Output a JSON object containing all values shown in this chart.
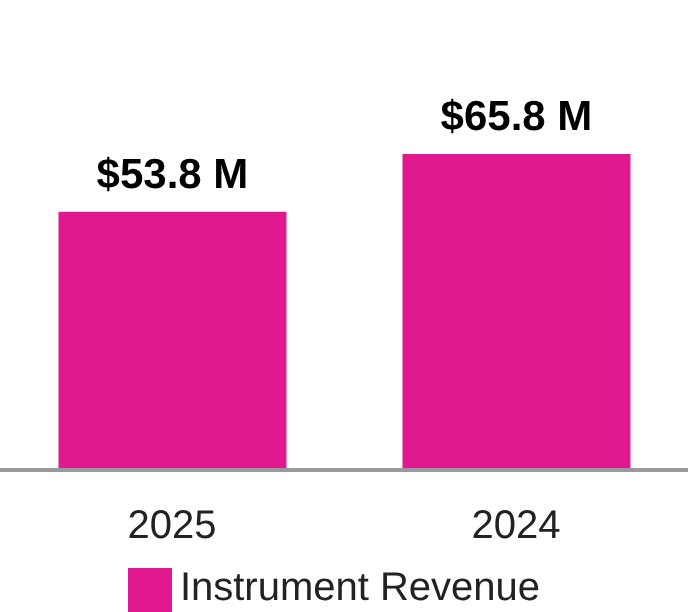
{
  "chart_data": {
    "type": "bar",
    "categories": [
      "2025",
      "2024"
    ],
    "series": [
      {
        "name": "Instrument Revenue",
        "color": "#e0198f",
        "values": [
          53.8,
          65.8
        ],
        "value_labels": [
          "$53.8 M",
          "$65.8 M"
        ]
      }
    ],
    "legend": "bottom",
    "grid": false
  }
}
